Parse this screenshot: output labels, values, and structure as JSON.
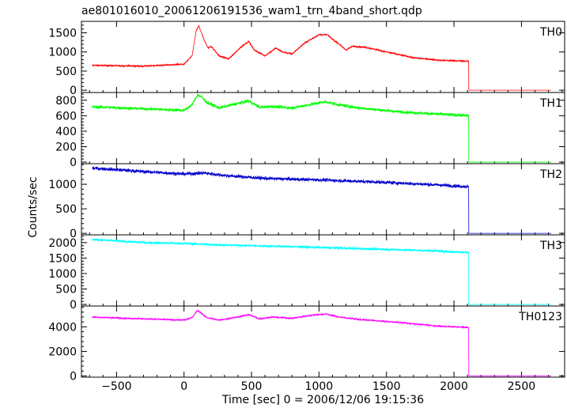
{
  "chart_data": {
    "type": "line",
    "title": "ae801016010_20061206191536_wam1_trn_4band_short.qdp",
    "xlabel": "Time [sec] 0 = 2006/12/06 19:15:36",
    "ylabel": "Counts/sec",
    "xlim": [
      -760,
      2820
    ],
    "x_ticks": [
      -500,
      0,
      500,
      1000,
      1500,
      2000,
      2500
    ],
    "x_tick_labels": [
      "−500",
      "0",
      "500",
      "1000",
      "1500",
      "2000",
      "2500"
    ],
    "x_range": [
      -680,
      2720
    ],
    "data_end": 2110,
    "grid": false,
    "legend": "none",
    "panels": [
      {
        "label": "TH0",
        "color": "#ff0000",
        "ylim": [
          -60,
          1800
        ],
        "y_ticks": [
          0,
          500,
          1000,
          1500
        ],
        "noise": 18,
        "profile": [
          [
            -680,
            650
          ],
          [
            -300,
            630
          ],
          [
            0,
            680
          ],
          [
            60,
            900
          ],
          [
            90,
            1550
          ],
          [
            110,
            1680
          ],
          [
            150,
            1300
          ],
          [
            180,
            1100
          ],
          [
            200,
            1150
          ],
          [
            260,
            900
          ],
          [
            330,
            820
          ],
          [
            430,
            1150
          ],
          [
            480,
            1280
          ],
          [
            520,
            1050
          ],
          [
            600,
            900
          ],
          [
            680,
            1100
          ],
          [
            730,
            1000
          ],
          [
            800,
            950
          ],
          [
            900,
            1250
          ],
          [
            1000,
            1450
          ],
          [
            1060,
            1450
          ],
          [
            1150,
            1200
          ],
          [
            1200,
            1050
          ],
          [
            1250,
            1150
          ],
          [
            1350,
            1120
          ],
          [
            1500,
            1000
          ],
          [
            1700,
            850
          ],
          [
            1900,
            780
          ],
          [
            2110,
            760
          ]
        ]
      },
      {
        "label": "TH1",
        "color": "#00ff00",
        "ylim": [
          -20,
          900
        ],
        "y_ticks": [
          0,
          200,
          400,
          600,
          800
        ],
        "noise": 20,
        "profile": [
          [
            -680,
            715
          ],
          [
            -300,
            690
          ],
          [
            0,
            670
          ],
          [
            60,
            740
          ],
          [
            100,
            870
          ],
          [
            130,
            840
          ],
          [
            170,
            770
          ],
          [
            260,
            700
          ],
          [
            400,
            760
          ],
          [
            480,
            790
          ],
          [
            560,
            710
          ],
          [
            650,
            720
          ],
          [
            800,
            700
          ],
          [
            950,
            750
          ],
          [
            1050,
            780
          ],
          [
            1150,
            740
          ],
          [
            1300,
            700
          ],
          [
            1600,
            650
          ],
          [
            1900,
            620
          ],
          [
            2110,
            600
          ]
        ]
      },
      {
        "label": "TH2",
        "color": "#0000cc",
        "ylim": [
          -30,
          1420
        ],
        "y_ticks": [
          0,
          500,
          1000
        ],
        "noise": 35,
        "profile": [
          [
            -680,
            1330
          ],
          [
            -300,
            1260
          ],
          [
            0,
            1210
          ],
          [
            150,
            1230
          ],
          [
            300,
            1180
          ],
          [
            600,
            1120
          ],
          [
            1000,
            1090
          ],
          [
            1400,
            1050
          ],
          [
            1800,
            1000
          ],
          [
            2110,
            950
          ]
        ]
      },
      {
        "label": "TH3",
        "color": "#00ffff",
        "ylim": [
          -50,
          2250
        ],
        "y_ticks": [
          0,
          500,
          1000,
          1500,
          2000
        ],
        "noise": 40,
        "profile": [
          [
            -680,
            2100
          ],
          [
            -300,
            2000
          ],
          [
            0,
            1970
          ],
          [
            300,
            1920
          ],
          [
            700,
            1880
          ],
          [
            1100,
            1830
          ],
          [
            1500,
            1780
          ],
          [
            1800,
            1740
          ],
          [
            2110,
            1680
          ]
        ]
      },
      {
        "label": "TH0123",
        "color": "#ff00ff",
        "ylim": [
          -100,
          5700
        ],
        "y_ticks": [
          0,
          2000,
          4000
        ],
        "noise": 60,
        "profile": [
          [
            -680,
            4800
          ],
          [
            -300,
            4650
          ],
          [
            0,
            4550
          ],
          [
            60,
            4750
          ],
          [
            100,
            5350
          ],
          [
            130,
            5100
          ],
          [
            170,
            4750
          ],
          [
            260,
            4550
          ],
          [
            400,
            4800
          ],
          [
            480,
            5000
          ],
          [
            560,
            4650
          ],
          [
            650,
            4800
          ],
          [
            800,
            4700
          ],
          [
            950,
            4950
          ],
          [
            1050,
            5050
          ],
          [
            1150,
            4800
          ],
          [
            1300,
            4600
          ],
          [
            1600,
            4350
          ],
          [
            1900,
            4050
          ],
          [
            2110,
            3950
          ]
        ]
      }
    ]
  }
}
